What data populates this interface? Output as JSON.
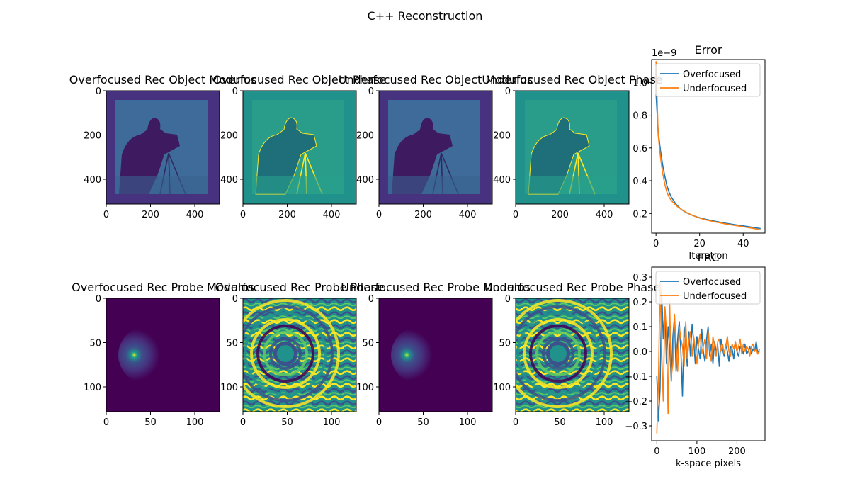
{
  "figure": {
    "suptitle": "C++ Reconstruction"
  },
  "colors": {
    "overfocused": "#1f77b4",
    "underfocused": "#ff7f0e",
    "viridis_dark": "#440154",
    "viridis_blue": "#3b528b",
    "viridis_teal": "#21918c",
    "viridis_green": "#5ec962",
    "viridis_yellow": "#fde725"
  },
  "images": [
    {
      "title": "Overfocused Rec Object Modulus",
      "content": "cameraman-modulus",
      "x_ticks": [
        "0",
        "200",
        "400"
      ],
      "y_ticks": [
        "0",
        "200",
        "400"
      ],
      "extent": 512
    },
    {
      "title": "Overfocused Rec Object Phase",
      "content": "cameraman-phase",
      "x_ticks": [
        "0",
        "200",
        "400"
      ],
      "y_ticks": [
        "0",
        "200",
        "400"
      ],
      "extent": 512
    },
    {
      "title": "Underfocused Rec Object Modulus",
      "content": "cameraman-modulus",
      "x_ticks": [
        "0",
        "200",
        "400"
      ],
      "y_ticks": [
        "0",
        "200",
        "400"
      ],
      "extent": 512
    },
    {
      "title": "Underfocused Rec Object Phase",
      "content": "cameraman-phase",
      "x_ticks": [
        "0",
        "200",
        "400"
      ],
      "y_ticks": [
        "0",
        "200",
        "400"
      ],
      "extent": 512
    },
    {
      "title": "Overfocused Rec Probe Modulus",
      "content": "probe-modulus",
      "x_ticks": [
        "0",
        "50",
        "100"
      ],
      "y_ticks": [
        "0",
        "50",
        "100"
      ],
      "extent": 128
    },
    {
      "title": "Overfocused Rec Probe Phase",
      "content": "probe-phase",
      "x_ticks": [
        "0",
        "50",
        "100"
      ],
      "y_ticks": [
        "0",
        "50",
        "100"
      ],
      "extent": 128
    },
    {
      "title": "Underfocused Rec Probe Modulus",
      "content": "probe-modulus",
      "x_ticks": [
        "0",
        "50",
        "100"
      ],
      "y_ticks": [
        "0",
        "50",
        "100"
      ],
      "extent": 128
    },
    {
      "title": "Underfocused Rec Probe Phase",
      "content": "probe-phase",
      "x_ticks": [
        "0",
        "50",
        "100"
      ],
      "y_ticks": [
        "0",
        "50",
        "100"
      ],
      "extent": 128
    }
  ],
  "chart_data": [
    {
      "type": "line",
      "title": "Error",
      "xlabel": "Iteration",
      "ylabel": "",
      "offset_text": "1e−9",
      "xlim": [
        -2,
        50
      ],
      "ylim": [
        0.08,
        1.14
      ],
      "x_ticks": [
        0,
        20,
        40
      ],
      "y_ticks": [
        0.2,
        0.4,
        0.6,
        0.8,
        1.0
      ],
      "y_tick_labels": [
        "0.2",
        "0.4",
        "0.6",
        "0.8",
        "1.0"
      ],
      "legend_position": "top-right",
      "series": [
        {
          "name": "Overfocused",
          "x": [
            0,
            1,
            2,
            3,
            4,
            5,
            6,
            7,
            8,
            9,
            10,
            12,
            14,
            16,
            18,
            20,
            22,
            25,
            28,
            32,
            36,
            40,
            44,
            48
          ],
          "values": [
            0.93,
            0.7,
            0.59,
            0.5,
            0.43,
            0.37,
            0.33,
            0.3,
            0.28,
            0.26,
            0.245,
            0.22,
            0.205,
            0.192,
            0.182,
            0.174,
            0.167,
            0.158,
            0.15,
            0.14,
            0.132,
            0.124,
            0.116,
            0.108
          ]
        },
        {
          "name": "Underfocused",
          "x": [
            0,
            1,
            2,
            3,
            4,
            5,
            6,
            7,
            8,
            9,
            10,
            12,
            14,
            16,
            18,
            20,
            22,
            25,
            28,
            32,
            36,
            40,
            44,
            48
          ],
          "values": [
            1.13,
            0.68,
            0.55,
            0.45,
            0.38,
            0.33,
            0.3,
            0.28,
            0.265,
            0.252,
            0.24,
            0.222,
            0.206,
            0.193,
            0.182,
            0.172,
            0.164,
            0.154,
            0.146,
            0.136,
            0.127,
            0.119,
            0.11,
            0.1
          ]
        }
      ]
    },
    {
      "type": "line",
      "title": "FRC",
      "xlabel": "k-space pixels",
      "ylabel": "",
      "xlim": [
        -13,
        270
      ],
      "ylim": [
        -0.36,
        0.34
      ],
      "x_ticks": [
        0,
        100,
        200
      ],
      "y_ticks": [
        -0.3,
        -0.2,
        -0.1,
        0.0,
        0.1,
        0.2,
        0.3
      ],
      "y_tick_labels": [
        "−0.3",
        "−0.2",
        "−0.1",
        "0.0",
        "0.1",
        "0.2",
        "0.3"
      ],
      "legend_position": "top-right",
      "series": [
        {
          "name": "Overfocused",
          "x": [
            0,
            4,
            8,
            12,
            16,
            20,
            24,
            28,
            32,
            36,
            40,
            44,
            48,
            52,
            56,
            60,
            64,
            68,
            72,
            76,
            80,
            84,
            88,
            92,
            96,
            100,
            104,
            108,
            112,
            116,
            120,
            124,
            128,
            132,
            136,
            140,
            144,
            148,
            152,
            156,
            160,
            164,
            168,
            172,
            176,
            180,
            184,
            188,
            192,
            196,
            200,
            204,
            208,
            212,
            216,
            220,
            224,
            228,
            232,
            236,
            240,
            244,
            248,
            252,
            256
          ],
          "values": [
            -0.1,
            -0.28,
            -0.15,
            0.25,
            0.05,
            0.18,
            -0.05,
            0.1,
            0.02,
            -0.12,
            0.06,
            0.14,
            -0.08,
            0.05,
            0.12,
            0.0,
            -0.18,
            0.1,
            0.03,
            -0.06,
            0.08,
            -0.02,
            0.11,
            0.04,
            -0.05,
            0.06,
            0.01,
            -0.03,
            0.09,
            0.0,
            -0.04,
            0.05,
            0.1,
            -0.02,
            0.03,
            -0.05,
            0.04,
            0.0,
            0.02,
            -0.06,
            0.05,
            0.01,
            -0.02,
            0.03,
            0.0,
            -0.04,
            0.02,
            0.01,
            -0.03,
            0.04,
            0.0,
            -0.02,
            0.02,
            0.01,
            -0.01,
            0.03,
            -0.01,
            0.0,
            0.02,
            -0.01,
            0.01,
            0.0,
            0.04,
            -0.01,
            0.01
          ]
        },
        {
          "name": "Underfocused",
          "x": [
            0,
            4,
            8,
            12,
            16,
            20,
            24,
            28,
            32,
            36,
            40,
            44,
            48,
            52,
            56,
            60,
            64,
            68,
            72,
            76,
            80,
            84,
            88,
            92,
            96,
            100,
            104,
            108,
            112,
            116,
            120,
            124,
            128,
            132,
            136,
            140,
            144,
            148,
            152,
            156,
            160,
            164,
            168,
            172,
            176,
            180,
            184,
            188,
            192,
            196,
            200,
            204,
            208,
            212,
            216,
            220,
            224,
            228,
            232,
            236,
            240,
            244,
            248,
            252,
            256
          ],
          "values": [
            -0.33,
            -0.12,
            0.28,
            0.0,
            -0.2,
            0.18,
            0.08,
            -0.25,
            0.2,
            -0.1,
            -0.05,
            0.15,
            0.03,
            -0.08,
            0.1,
            0.05,
            0.02,
            -0.06,
            0.12,
            -0.03,
            0.04,
            0.08,
            -0.02,
            0.06,
            0.01,
            -0.05,
            0.03,
            0.07,
            -0.01,
            0.02,
            0.05,
            -0.03,
            0.08,
            0.01,
            -0.04,
            0.06,
            0.02,
            -0.02,
            0.04,
            0.05,
            0.0,
            0.03,
            -0.01,
            0.02,
            0.06,
            0.0,
            -0.02,
            0.03,
            0.01,
            0.04,
            0.0,
            0.02,
            0.05,
            -0.01,
            0.03,
            0.0,
            0.02,
            0.01,
            -0.02,
            0.02,
            0.03,
            0.0,
            0.01,
            -0.01,
            0.0
          ]
        }
      ]
    }
  ]
}
